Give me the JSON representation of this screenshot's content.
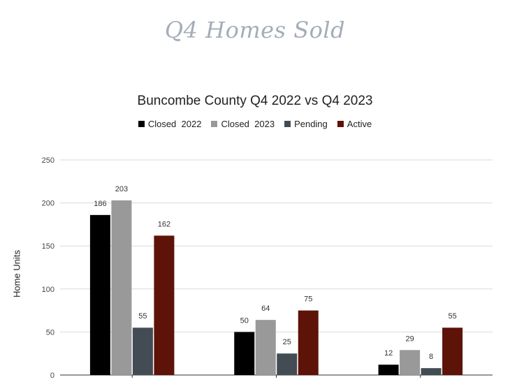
{
  "page": {
    "title": "Q4 Homes Sold"
  },
  "chart_data": {
    "type": "bar",
    "title": "Buncombe County Q4 2022 vs Q4 2023",
    "xlabel": "",
    "ylabel": "Home Units",
    "ylim": [
      0,
      250
    ],
    "yticks": [
      0,
      50,
      100,
      150,
      200,
      250
    ],
    "grid": true,
    "legend_position": "top",
    "categories": [
      "",
      "",
      ""
    ],
    "series": [
      {
        "name": "Closed  2022",
        "color": "#000000",
        "values": [
          186,
          50,
          12
        ]
      },
      {
        "name": "Closed  2023",
        "color": "#999999",
        "values": [
          203,
          64,
          29
        ]
      },
      {
        "name": "Pending",
        "color": "#434c54",
        "values": [
          55,
          25,
          8
        ]
      },
      {
        "name": "Active",
        "color": "#5d1308",
        "values": [
          162,
          75,
          55
        ]
      }
    ]
  }
}
